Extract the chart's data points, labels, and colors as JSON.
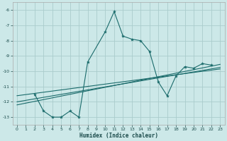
{
  "xlabel": "Humidex (Indice chaleur)",
  "bg_color": "#cce8e8",
  "grid_color": "#aacccc",
  "line_color": "#1a6b6b",
  "xlim": [
    -0.5,
    23.5
  ],
  "ylim": [
    -13.5,
    -5.5
  ],
  "yticks": [
    -13,
    -12,
    -11,
    -10,
    -9,
    -8,
    -7,
    -6
  ],
  "xticks": [
    0,
    1,
    2,
    3,
    4,
    5,
    6,
    7,
    8,
    9,
    10,
    11,
    12,
    13,
    14,
    15,
    16,
    17,
    18,
    19,
    20,
    21,
    22,
    23
  ],
  "series_main": {
    "x": [
      2,
      3,
      4,
      5,
      6,
      7,
      8,
      10,
      11,
      12,
      13,
      14,
      15,
      16,
      17,
      18,
      19,
      20,
      21,
      22
    ],
    "y": [
      -11.5,
      -12.6,
      -13.0,
      -13.0,
      -12.6,
      -13.0,
      -9.4,
      -7.4,
      -6.1,
      -7.7,
      -7.9,
      -8.0,
      -8.7,
      -10.7,
      -11.6,
      -10.3,
      -9.7,
      -9.8,
      -9.5,
      -9.6
    ]
  },
  "trend_lines": [
    {
      "x": [
        0,
        23
      ],
      "y": [
        -12.2,
        -9.55
      ]
    },
    {
      "x": [
        0,
        23
      ],
      "y": [
        -12.0,
        -9.75
      ]
    },
    {
      "x": [
        0,
        23
      ],
      "y": [
        -11.6,
        -9.85
      ]
    }
  ]
}
